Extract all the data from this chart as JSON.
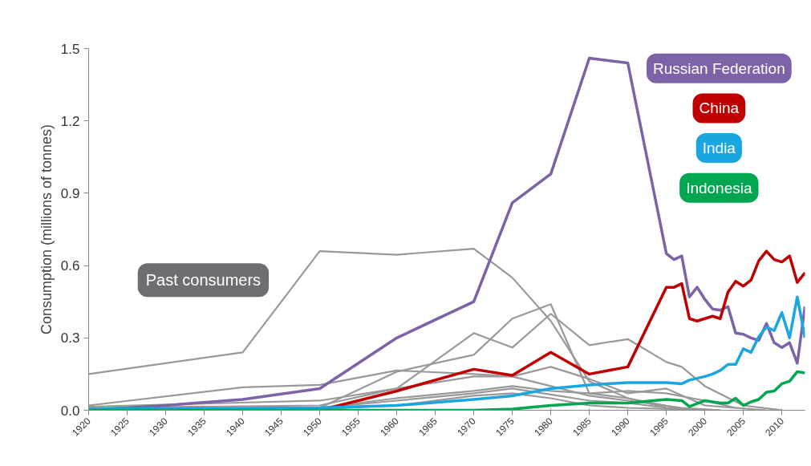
{
  "chart_data": {
    "type": "line",
    "ylabel": "Consumption (millions of tonnes)",
    "xlim": [
      1920,
      2013
    ],
    "xticks": [
      1920,
      1925,
      1930,
      1935,
      1940,
      1945,
      1950,
      1955,
      1960,
      1965,
      1970,
      1975,
      1980,
      1985,
      1990,
      1995,
      2000,
      2005,
      2010
    ],
    "ylim": [
      0,
      1.5
    ],
    "yticks": [
      {
        "value": 0,
        "label": "0.0"
      },
      0.3,
      0.6,
      0.9,
      1.2,
      1.5
    ],
    "grid": false,
    "legend": false,
    "marker": "none",
    "line_style": "solid",
    "annotations": [
      "Past consumers"
    ],
    "series": [
      {
        "color": "#999999",
        "x": [
          1920,
          1940,
          1950,
          1960,
          1970,
          1975,
          1980,
          1985,
          1990,
          1995,
          2000
        ],
        "values": [
          0.15,
          0.24,
          0.66,
          0.645,
          0.67,
          0.55,
          0.37,
          0.12,
          0.05,
          0.01,
          0.0
        ]
      },
      {
        "color": "#999999",
        "x": [
          1920,
          1940,
          1950,
          1960,
          1970,
          1975,
          1980,
          1985,
          1990,
          1997,
          2002
        ],
        "values": [
          0.02,
          0.095,
          0.105,
          0.165,
          0.15,
          0.14,
          0.1,
          0.06,
          0.04,
          0.01,
          0.0
        ]
      },
      {
        "color": "#999999",
        "x": [
          1920,
          1950,
          1960,
          1970,
          1975,
          1980,
          1985,
          1990,
          1995,
          1997,
          2000,
          2005,
          2010
        ],
        "values": [
          0.01,
          0.02,
          0.09,
          0.32,
          0.26,
          0.4,
          0.27,
          0.295,
          0.2,
          0.18,
          0.1,
          0.02,
          0.0
        ]
      },
      {
        "color": "#999999",
        "x": [
          1950,
          1960,
          1970,
          1975,
          1980,
          1985,
          1990,
          1998
        ],
        "values": [
          0.01,
          0.16,
          0.23,
          0.38,
          0.44,
          0.07,
          0.05,
          0.0
        ]
      },
      {
        "color": "#999999",
        "x": [
          1920,
          1950,
          1960,
          1970,
          1975,
          1980,
          1985,
          1990,
          1995,
          2000,
          2008
        ],
        "values": [
          0.015,
          0.04,
          0.09,
          0.14,
          0.14,
          0.18,
          0.13,
          0.07,
          0.09,
          0.02,
          0.0
        ]
      },
      {
        "color": "#999999",
        "x": [
          1920,
          1950,
          1960,
          1970,
          1975,
          1980,
          1985,
          1990,
          1995,
          2000,
          2004
        ],
        "values": [
          0.0,
          0.01,
          0.05,
          0.08,
          0.1,
          0.08,
          0.07,
          0.08,
          0.07,
          0.04,
          0.01
        ]
      },
      {
        "color": "#999999",
        "x": [
          1950,
          1960,
          1970,
          1975,
          1980,
          1985,
          1990,
          2002
        ],
        "values": [
          0.005,
          0.02,
          0.06,
          0.07,
          0.05,
          0.02,
          0.01,
          0.0
        ]
      },
      {
        "color": "#999999",
        "x": [
          1920,
          1950,
          1960,
          1970,
          1975,
          1980,
          1985,
          1990,
          1995
        ],
        "values": [
          0.005,
          0.01,
          0.04,
          0.07,
          0.09,
          0.065,
          0.04,
          0.03,
          0.01
        ]
      },
      {
        "name": "Russian Federation",
        "color": "#7d62a8",
        "x": [
          1920,
          1930,
          1940,
          1950,
          1960,
          1970,
          1975,
          1980,
          1985,
          1990,
          1995,
          1996,
          1997,
          1998,
          1999,
          2000,
          2001,
          2002,
          2003,
          2004,
          2005,
          2006,
          2007,
          2008,
          2009,
          2010,
          2011,
          2012,
          2013
        ],
        "values": [
          0.0,
          0.02,
          0.045,
          0.09,
          0.3,
          0.45,
          0.86,
          0.98,
          1.46,
          1.44,
          0.65,
          0.625,
          0.64,
          0.47,
          0.51,
          0.46,
          0.42,
          0.415,
          0.43,
          0.32,
          0.315,
          0.3,
          0.29,
          0.36,
          0.28,
          0.26,
          0.28,
          0.195,
          0.43
        ]
      },
      {
        "name": "China",
        "color": "#c00000",
        "x": [
          1950,
          1960,
          1970,
          1975,
          1980,
          1985,
          1990,
          1995,
          1996,
          1997,
          1998,
          1999,
          2000,
          2001,
          2002,
          2003,
          2004,
          2005,
          2006,
          2007,
          2008,
          2009,
          2010,
          2011,
          2012,
          2013
        ],
        "values": [
          0.0,
          0.08,
          0.17,
          0.145,
          0.24,
          0.15,
          0.18,
          0.51,
          0.51,
          0.525,
          0.38,
          0.37,
          0.38,
          0.39,
          0.38,
          0.49,
          0.535,
          0.515,
          0.54,
          0.62,
          0.66,
          0.625,
          0.615,
          0.64,
          0.53,
          0.57
        ]
      },
      {
        "name": "India",
        "color": "#1aa6e0",
        "x": [
          1920,
          1950,
          1960,
          1970,
          1975,
          1980,
          1985,
          1990,
          1995,
          1997,
          1998,
          2000,
          2001,
          2002,
          2003,
          2004,
          2005,
          2006,
          2007,
          2008,
          2009,
          2010,
          2011,
          2012,
          2013
        ],
        "values": [
          0.005,
          0.01,
          0.02,
          0.045,
          0.06,
          0.09,
          0.105,
          0.115,
          0.115,
          0.11,
          0.125,
          0.14,
          0.15,
          0.165,
          0.19,
          0.19,
          0.255,
          0.24,
          0.305,
          0.345,
          0.33,
          0.405,
          0.3,
          0.47,
          0.3
        ]
      },
      {
        "name": "Indonesia",
        "color": "#00a650",
        "x": [
          1920,
          1970,
          1975,
          1980,
          1985,
          1990,
          1995,
          1997,
          1998,
          2000,
          2002,
          2003,
          2004,
          2005,
          2006,
          2007,
          2008,
          2009,
          2010,
          2011,
          2012,
          2013
        ],
        "values": [
          0.0,
          0.0,
          0.005,
          0.02,
          0.03,
          0.03,
          0.045,
          0.04,
          0.015,
          0.04,
          0.03,
          0.03,
          0.05,
          0.02,
          0.035,
          0.045,
          0.075,
          0.08,
          0.11,
          0.12,
          0.16,
          0.155
        ]
      }
    ]
  }
}
